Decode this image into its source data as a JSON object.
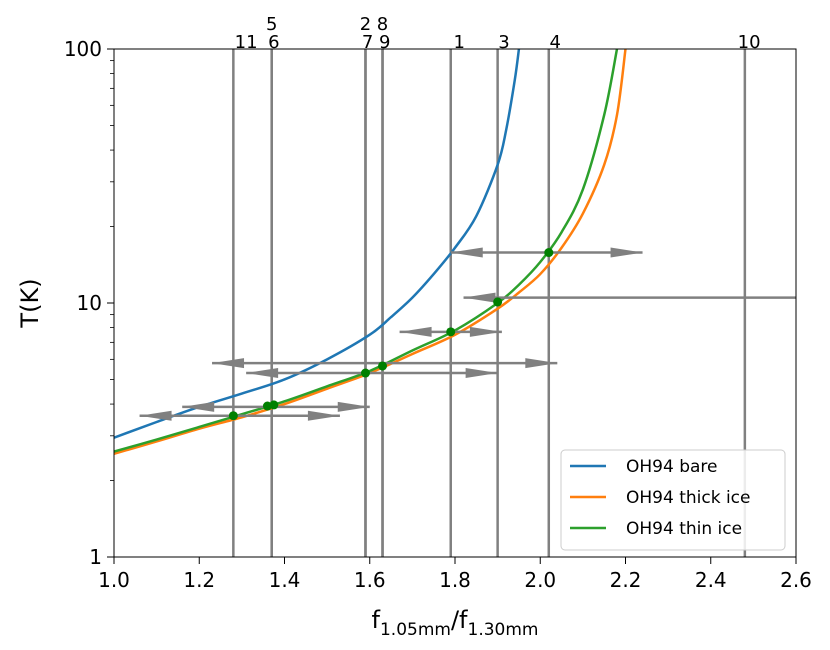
{
  "chart_data": {
    "type": "line",
    "title": "",
    "xlabel_main": "f",
    "xlabel_sub1": "1.05mm",
    "xlabel_slash": "/f",
    "xlabel_sub2": "1.30mm",
    "ylabel": "T(K)",
    "xlim": [
      1.0,
      2.6
    ],
    "ylim": [
      1,
      100
    ],
    "yscale": "log",
    "x_ticks": [
      1.0,
      1.2,
      1.4,
      1.6,
      1.8,
      2.0,
      2.2,
      2.4,
      2.6
    ],
    "x_tick_labels": [
      "1.0",
      "1.2",
      "1.4",
      "1.6",
      "1.8",
      "2.0",
      "2.2",
      "2.4",
      "2.6"
    ],
    "y_ticks": [
      1,
      10,
      100
    ],
    "y_tick_labels": [
      "1",
      "10",
      "100"
    ],
    "series": [
      {
        "name": "OH94 bare",
        "color": "#1f77b4",
        "x": [
          1.0,
          1.1,
          1.2,
          1.3,
          1.4,
          1.5,
          1.6,
          1.65,
          1.7,
          1.75,
          1.8,
          1.85,
          1.9,
          1.92,
          1.94,
          1.95
        ],
        "y": [
          2.95,
          3.4,
          3.9,
          4.4,
          5.0,
          6.0,
          7.5,
          8.8,
          10.5,
          13.0,
          16.5,
          22.0,
          35.0,
          48.0,
          75.0,
          100.0
        ]
      },
      {
        "name": "OH94 thick ice",
        "color": "#ff7f0e",
        "x": [
          1.0,
          1.1,
          1.2,
          1.3,
          1.4,
          1.5,
          1.6,
          1.7,
          1.8,
          1.9,
          1.95,
          2.0,
          2.05,
          2.1,
          2.15,
          2.18,
          2.2
        ],
        "y": [
          2.55,
          2.85,
          3.2,
          3.55,
          4.0,
          4.6,
          5.3,
          6.3,
          7.5,
          9.5,
          11.0,
          13.0,
          16.5,
          22.5,
          35.0,
          55.0,
          100.0
        ]
      },
      {
        "name": "OH94 thin ice",
        "color": "#2ca02c",
        "x": [
          1.0,
          1.1,
          1.2,
          1.3,
          1.4,
          1.5,
          1.6,
          1.7,
          1.8,
          1.9,
          1.95,
          2.0,
          2.05,
          2.1,
          2.15,
          2.18
        ],
        "y": [
          2.6,
          2.9,
          3.25,
          3.65,
          4.1,
          4.7,
          5.4,
          6.5,
          7.8,
          10.0,
          11.8,
          14.5,
          19.0,
          28.0,
          55.0,
          100.0
        ]
      }
    ],
    "vertical_lines": [
      {
        "label": "1",
        "x": 1.79
      },
      {
        "label": "2",
        "x": 1.59
      },
      {
        "label": "3",
        "x": 1.9
      },
      {
        "label": "4",
        "x": 2.02
      },
      {
        "label": "5",
        "x": 1.37
      },
      {
        "label": "6",
        "x": 1.37
      },
      {
        "label": "7",
        "x": 1.59
      },
      {
        "label": "8",
        "x": 1.63
      },
      {
        "label": "9",
        "x": 1.63
      },
      {
        "label": "10",
        "x": 2.48
      },
      {
        "label": "11",
        "x": 1.28
      }
    ],
    "top_labels_row1": [
      {
        "text": "5",
        "x": 1.37
      },
      {
        "text": "2",
        "x": 1.59
      },
      {
        "text": "8",
        "x": 1.63
      }
    ],
    "top_labels_row2": [
      {
        "text": "11",
        "x": 1.31
      },
      {
        "text": "6",
        "x": 1.375
      },
      {
        "text": "7",
        "x": 1.595
      },
      {
        "text": "9",
        "x": 1.635
      },
      {
        "text": "1",
        "x": 1.81
      },
      {
        "text": "3",
        "x": 1.915
      },
      {
        "text": "4",
        "x": 2.035
      },
      {
        "text": "10",
        "x": 2.49
      }
    ],
    "points": [
      {
        "x": 1.28,
        "y": 3.6
      },
      {
        "x": 1.36,
        "y": 3.93
      },
      {
        "x": 1.375,
        "y": 3.97
      },
      {
        "x": 1.59,
        "y": 5.3
      },
      {
        "x": 1.63,
        "y": 5.65
      },
      {
        "x": 1.79,
        "y": 7.7
      },
      {
        "x": 1.9,
        "y": 10.1
      },
      {
        "x": 2.02,
        "y": 15.8
      }
    ],
    "errorbars": [
      {
        "y": 15.8,
        "x1": 1.79,
        "x2": 2.24
      },
      {
        "y": 10.5,
        "x1": 1.82,
        "x2": 2.6
      },
      {
        "y": 7.7,
        "x1": 1.67,
        "x2": 1.91
      },
      {
        "y": 5.8,
        "x1": 1.23,
        "x2": 2.04
      },
      {
        "y": 5.3,
        "x1": 1.31,
        "x2": 1.9
      },
      {
        "y": 3.9,
        "x1": 1.16,
        "x2": 1.6
      },
      {
        "y": 3.6,
        "x1": 1.06,
        "x2": 1.53
      }
    ],
    "errorbar_color": "#808080",
    "point_color": "#008000",
    "legend": {
      "position": "lower-right",
      "entries": [
        "OH94 bare",
        "OH94 thick ice",
        "OH94 thin ice"
      ]
    }
  }
}
